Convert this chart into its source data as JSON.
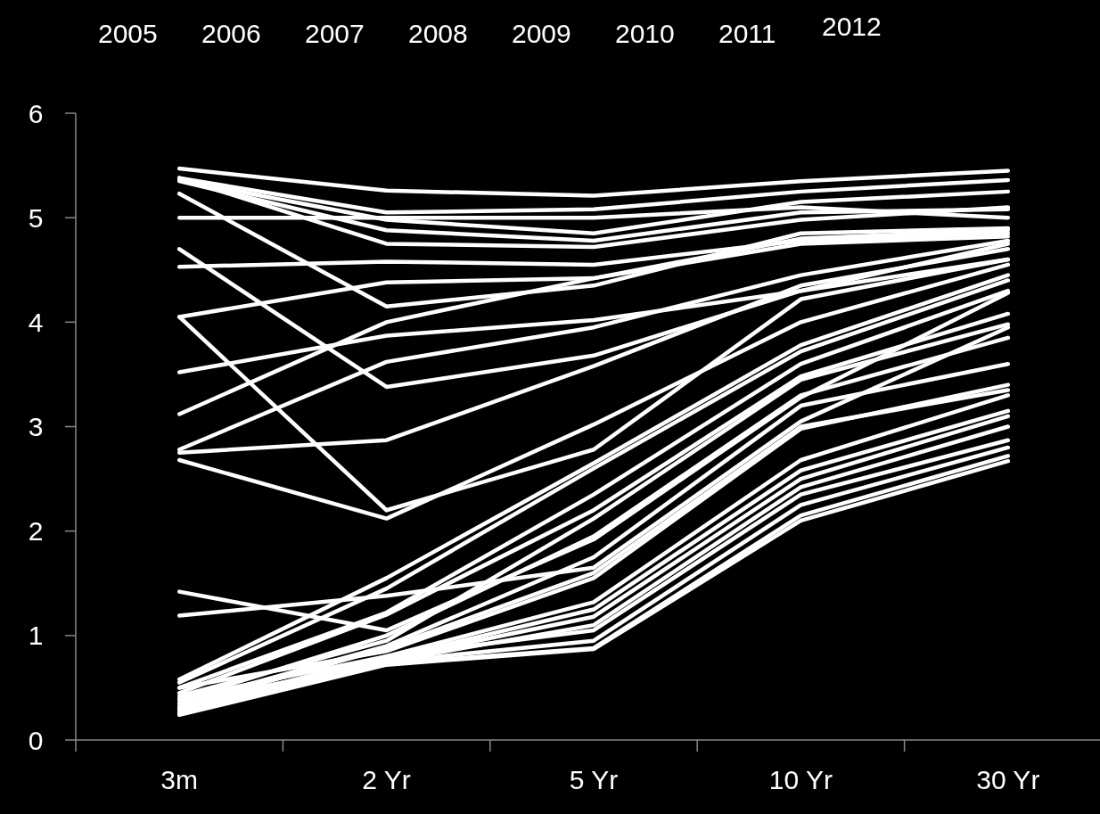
{
  "chart_data": {
    "type": "line",
    "annotations": [
      "2005",
      "2006",
      "2007",
      "2008",
      "2009",
      "2010",
      "2011",
      "2012"
    ],
    "categories": [
      "3m",
      "2 Yr",
      "5 Yr",
      "10 Yr",
      "30 Yr"
    ],
    "ylim": [
      0,
      6
    ],
    "yticks": [
      0,
      1,
      2,
      3,
      4,
      5,
      6
    ],
    "grid": false,
    "marker": "none",
    "line_style": "solid",
    "series": [
      {
        "color": "#ffffff",
        "values": [
          5.47,
          5.26,
          5.21,
          5.35,
          5.45
        ]
      },
      {
        "color": "#ffffff",
        "values": [
          5.38,
          5.05,
          5.08,
          5.25,
          5.36
        ]
      },
      {
        "color": "#ffffff",
        "values": [
          5.36,
          4.98,
          4.85,
          5.15,
          5.25
        ]
      },
      {
        "color": "#ffffff",
        "values": [
          5.35,
          4.88,
          4.78,
          5.05,
          5.08
        ]
      },
      {
        "color": "#ffffff",
        "values": [
          5.38,
          4.75,
          4.72,
          4.98,
          5.1
        ]
      },
      {
        "color": "#ffffff",
        "values": [
          5.0,
          5.0,
          5.0,
          5.1,
          5.0
        ]
      },
      {
        "color": "#ffffff",
        "values": [
          5.23,
          4.15,
          4.35,
          4.85,
          4.9
        ]
      },
      {
        "color": "#ffffff",
        "values": [
          4.53,
          4.58,
          4.55,
          4.78,
          4.85
        ]
      },
      {
        "color": "#ffffff",
        "values": [
          4.05,
          4.38,
          4.42,
          4.8,
          4.88
        ]
      },
      {
        "color": "#ffffff",
        "values": [
          4.7,
          3.38,
          3.68,
          4.3,
          4.6
        ]
      },
      {
        "color": "#ffffff",
        "values": [
          3.52,
          3.87,
          4.02,
          4.3,
          4.75
        ]
      },
      {
        "color": "#ffffff",
        "values": [
          3.12,
          4.0,
          4.42,
          4.75,
          4.82
        ]
      },
      {
        "color": "#ffffff",
        "values": [
          2.78,
          3.62,
          3.95,
          4.45,
          4.78
        ]
      },
      {
        "color": "#ffffff",
        "values": [
          4.05,
          2.2,
          2.78,
          4.22,
          4.6
        ]
      },
      {
        "color": "#ffffff",
        "values": [
          2.75,
          2.87,
          3.58,
          4.35,
          4.7
        ]
      },
      {
        "color": "#ffffff",
        "values": [
          2.68,
          2.12,
          3.02,
          4.0,
          4.55
        ]
      },
      {
        "color": "#ffffff",
        "values": [
          1.42,
          1.05,
          1.92,
          3.28,
          4.28
        ]
      },
      {
        "color": "#ffffff",
        "values": [
          1.19,
          1.38,
          1.65,
          3.05,
          3.95
        ]
      },
      {
        "color": "#ffffff",
        "values": [
          0.58,
          1.55,
          2.65,
          3.78,
          4.45
        ]
      },
      {
        "color": "#ffffff",
        "values": [
          0.55,
          1.45,
          2.6,
          3.72,
          4.4
        ]
      },
      {
        "color": "#ffffff",
        "values": [
          0.5,
          1.22,
          2.35,
          3.6,
          4.3
        ]
      },
      {
        "color": "#ffffff",
        "values": [
          0.45,
          1.2,
          2.2,
          3.48,
          4.08
        ]
      },
      {
        "color": "#ffffff",
        "values": [
          0.42,
          0.95,
          2.12,
          3.45,
          3.98
        ]
      },
      {
        "color": "#ffffff",
        "values": [
          0.38,
          1.0,
          1.95,
          3.3,
          3.85
        ]
      },
      {
        "color": "#ffffff",
        "values": [
          0.35,
          0.9,
          1.75,
          3.2,
          3.6
        ]
      },
      {
        "color": "#ffffff",
        "values": [
          0.5,
          0.85,
          1.55,
          2.98,
          3.4
        ]
      },
      {
        "color": "#ffffff",
        "values": [
          0.32,
          0.88,
          1.6,
          3.0,
          3.35
        ]
      },
      {
        "color": "#ffffff",
        "values": [
          0.3,
          0.8,
          1.32,
          2.68,
          3.3
        ]
      },
      {
        "color": "#ffffff",
        "values": [
          0.28,
          0.78,
          1.25,
          2.58,
          3.15
        ]
      },
      {
        "color": "#ffffff",
        "values": [
          0.26,
          0.77,
          1.18,
          2.5,
          3.1
        ]
      },
      {
        "color": "#ffffff",
        "values": [
          0.25,
          0.75,
          1.1,
          2.42,
          3.0
        ]
      },
      {
        "color": "#ffffff",
        "values": [
          0.4,
          0.8,
          1.05,
          2.35,
          2.87
        ]
      },
      {
        "color": "#ffffff",
        "values": [
          0.35,
          0.75,
          0.95,
          2.25,
          2.8
        ]
      },
      {
        "color": "#ffffff",
        "values": [
          0.3,
          0.73,
          0.88,
          2.15,
          2.72
        ]
      },
      {
        "color": "#ffffff",
        "values": [
          0.24,
          0.72,
          0.87,
          2.1,
          2.67
        ]
      }
    ]
  }
}
